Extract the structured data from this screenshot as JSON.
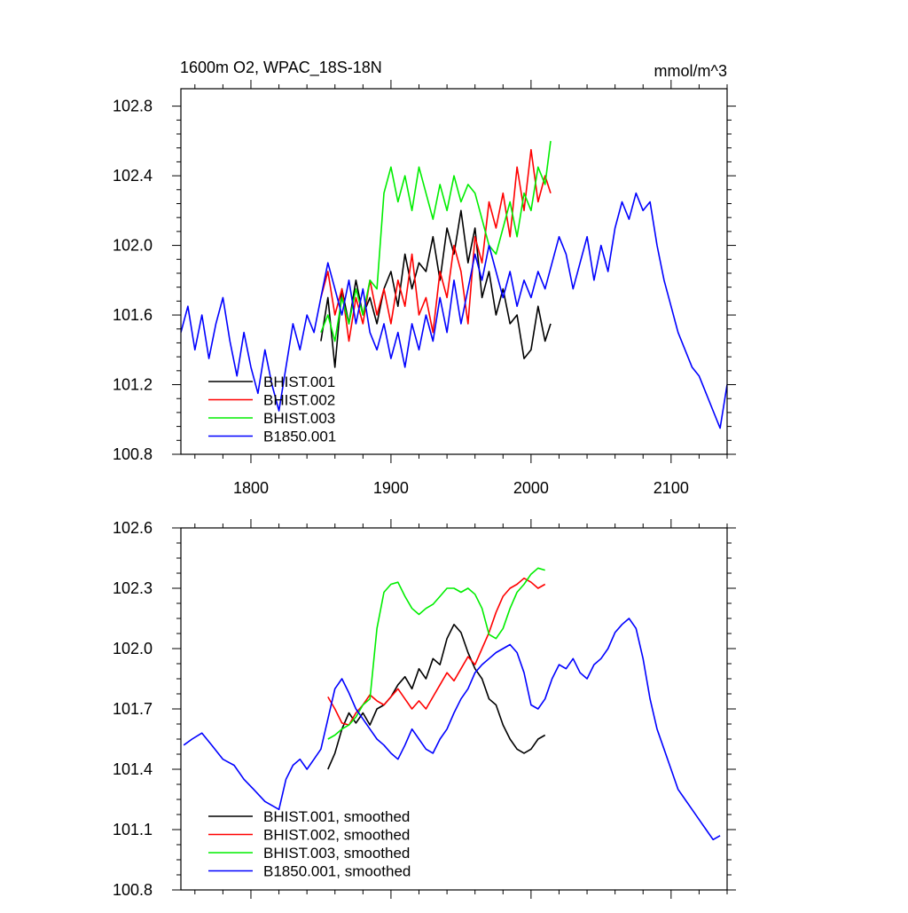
{
  "chart_data": [
    {
      "type": "line",
      "title": "1600m O2, WPAC_18S-18N",
      "units": "mmol/m^3",
      "xlim": [
        1750,
        2140
      ],
      "ylim": [
        100.8,
        102.9
      ],
      "xticks": [
        1800,
        1900,
        2000,
        2100
      ],
      "xtick_labels": [
        "1800",
        "1900",
        "2000",
        "2100"
      ],
      "yticks": [
        100.8,
        101.2,
        101.6,
        102.0,
        102.4,
        102.8
      ],
      "ytick_labels": [
        "100.8",
        "101.2",
        "101.6",
        "102.0",
        "102.4",
        "102.8"
      ],
      "legend_position": "bottom-left",
      "series": [
        {
          "name": "BHIST.001",
          "color": "#000000",
          "x": [
            1850,
            1855,
            1860,
            1865,
            1870,
            1875,
            1880,
            1885,
            1890,
            1895,
            1900,
            1905,
            1910,
            1915,
            1920,
            1925,
            1930,
            1935,
            1940,
            1945,
            1950,
            1955,
            1960,
            1965,
            1970,
            1975,
            1980,
            1985,
            1990,
            1995,
            2000,
            2005,
            2010,
            2014
          ],
          "values": [
            101.45,
            101.7,
            101.3,
            101.75,
            101.55,
            101.8,
            101.6,
            101.7,
            101.55,
            101.75,
            101.85,
            101.65,
            101.95,
            101.75,
            101.9,
            101.85,
            102.05,
            101.8,
            102.1,
            101.95,
            102.2,
            101.9,
            102.1,
            101.7,
            101.85,
            101.6,
            101.75,
            101.55,
            101.6,
            101.35,
            101.4,
            101.65,
            101.45,
            101.55
          ]
        },
        {
          "name": "BHIST.002",
          "color": "#ff0000",
          "x": [
            1850,
            1855,
            1860,
            1865,
            1870,
            1875,
            1880,
            1885,
            1890,
            1895,
            1900,
            1905,
            1910,
            1915,
            1920,
            1925,
            1930,
            1935,
            1940,
            1945,
            1950,
            1955,
            1960,
            1965,
            1970,
            1975,
            1980,
            1985,
            1990,
            1995,
            2000,
            2005,
            2010,
            2014
          ],
          "values": [
            101.7,
            101.85,
            101.6,
            101.75,
            101.45,
            101.7,
            101.55,
            101.8,
            101.6,
            101.75,
            101.55,
            101.8,
            101.65,
            101.95,
            101.6,
            101.7,
            101.5,
            101.85,
            101.7,
            102.0,
            101.85,
            101.55,
            102.05,
            101.9,
            102.25,
            102.1,
            102.3,
            102.05,
            102.45,
            102.2,
            102.55,
            102.25,
            102.4,
            102.3
          ]
        },
        {
          "name": "BHIST.003",
          "color": "#00ee00",
          "x": [
            1850,
            1855,
            1860,
            1865,
            1870,
            1875,
            1880,
            1885,
            1890,
            1895,
            1900,
            1905,
            1910,
            1915,
            1920,
            1925,
            1930,
            1935,
            1940,
            1945,
            1950,
            1955,
            1960,
            1965,
            1970,
            1975,
            1980,
            1985,
            1990,
            1995,
            2000,
            2005,
            2010,
            2014
          ],
          "values": [
            101.5,
            101.6,
            101.45,
            101.7,
            101.55,
            101.75,
            101.6,
            101.8,
            101.75,
            102.3,
            102.45,
            102.25,
            102.4,
            102.2,
            102.45,
            102.3,
            102.15,
            102.35,
            102.2,
            102.4,
            102.25,
            102.35,
            102.3,
            102.15,
            102.0,
            101.95,
            102.1,
            102.25,
            102.05,
            102.3,
            102.2,
            102.45,
            102.35,
            102.6
          ]
        },
        {
          "name": "B1850.001",
          "color": "#0000ff",
          "x": [
            1750,
            1755,
            1760,
            1765,
            1770,
            1775,
            1780,
            1785,
            1790,
            1795,
            1800,
            1805,
            1810,
            1815,
            1820,
            1825,
            1830,
            1835,
            1840,
            1845,
            1850,
            1855,
            1860,
            1865,
            1870,
            1875,
            1880,
            1885,
            1890,
            1895,
            1900,
            1905,
            1910,
            1915,
            1920,
            1925,
            1930,
            1935,
            1940,
            1945,
            1950,
            1955,
            1960,
            1965,
            1970,
            1975,
            1980,
            1985,
            1990,
            1995,
            2000,
            2005,
            2010,
            2015,
            2020,
            2025,
            2030,
            2035,
            2040,
            2045,
            2050,
            2055,
            2060,
            2065,
            2070,
            2075,
            2080,
            2085,
            2090,
            2095,
            2100,
            2105,
            2110,
            2115,
            2120,
            2125,
            2130,
            2135,
            2140
          ],
          "values": [
            101.5,
            101.65,
            101.4,
            101.6,
            101.35,
            101.55,
            101.7,
            101.45,
            101.25,
            101.5,
            101.3,
            101.15,
            101.4,
            101.2,
            101.05,
            101.3,
            101.55,
            101.4,
            101.6,
            101.5,
            101.7,
            101.9,
            101.75,
            101.6,
            101.8,
            101.55,
            101.75,
            101.5,
            101.4,
            101.55,
            101.35,
            101.5,
            101.3,
            101.55,
            101.4,
            101.6,
            101.45,
            101.7,
            101.5,
            101.8,
            101.55,
            101.75,
            101.95,
            101.8,
            102.0,
            101.85,
            101.7,
            101.85,
            101.65,
            101.8,
            101.7,
            101.85,
            101.75,
            101.9,
            102.05,
            101.95,
            101.75,
            101.9,
            102.05,
            101.8,
            102.0,
            101.85,
            102.1,
            102.25,
            102.15,
            102.3,
            102.2,
            102.25,
            102.0,
            101.8,
            101.65,
            101.5,
            101.4,
            101.3,
            101.25,
            101.15,
            101.05,
            100.95,
            101.2
          ]
        }
      ]
    },
    {
      "type": "line",
      "title": "",
      "xlim": [
        1750,
        2140
      ],
      "ylim": [
        100.8,
        102.6
      ],
      "xticks": [
        1800,
        1900,
        2000,
        2100
      ],
      "yticks": [
        100.8,
        101.1,
        101.4,
        101.7,
        102.0,
        102.3,
        102.6
      ],
      "ytick_labels": [
        "100.8",
        "101.1",
        "101.4",
        "101.7",
        "102.0",
        "102.3",
        "102.6"
      ],
      "legend_position": "bottom-left",
      "series": [
        {
          "name": "BHIST.001, smoothed",
          "color": "#000000",
          "x": [
            1855,
            1860,
            1865,
            1870,
            1875,
            1880,
            1885,
            1890,
            1895,
            1900,
            1905,
            1910,
            1915,
            1920,
            1925,
            1930,
            1935,
            1940,
            1945,
            1950,
            1955,
            1960,
            1965,
            1970,
            1975,
            1980,
            1985,
            1990,
            1995,
            2000,
            2005,
            2010
          ],
          "values": [
            101.4,
            101.48,
            101.6,
            101.68,
            101.63,
            101.68,
            101.62,
            101.7,
            101.72,
            101.76,
            101.82,
            101.86,
            101.8,
            101.9,
            101.85,
            101.95,
            101.92,
            102.05,
            102.12,
            102.08,
            101.98,
            101.9,
            101.85,
            101.75,
            101.72,
            101.62,
            101.55,
            101.5,
            101.48,
            101.5,
            101.55,
            101.57
          ]
        },
        {
          "name": "BHIST.002, smoothed",
          "color": "#ff0000",
          "x": [
            1855,
            1860,
            1865,
            1870,
            1875,
            1880,
            1885,
            1890,
            1895,
            1900,
            1905,
            1910,
            1915,
            1920,
            1925,
            1930,
            1935,
            1940,
            1945,
            1950,
            1955,
            1960,
            1965,
            1970,
            1975,
            1980,
            1985,
            1990,
            1995,
            2000,
            2005,
            2010
          ],
          "values": [
            101.76,
            101.7,
            101.63,
            101.62,
            101.68,
            101.72,
            101.77,
            101.74,
            101.72,
            101.76,
            101.8,
            101.75,
            101.7,
            101.74,
            101.7,
            101.76,
            101.82,
            101.88,
            101.84,
            101.9,
            101.96,
            101.92,
            102.0,
            102.08,
            102.18,
            102.26,
            102.3,
            102.32,
            102.35,
            102.33,
            102.3,
            102.32
          ]
        },
        {
          "name": "BHIST.003, smoothed",
          "color": "#00ee00",
          "x": [
            1855,
            1860,
            1865,
            1870,
            1875,
            1880,
            1885,
            1890,
            1895,
            1900,
            1905,
            1910,
            1915,
            1920,
            1925,
            1930,
            1935,
            1940,
            1945,
            1950,
            1955,
            1960,
            1965,
            1970,
            1975,
            1980,
            1985,
            1990,
            1995,
            2000,
            2005,
            2010
          ],
          "values": [
            101.55,
            101.57,
            101.6,
            101.62,
            101.66,
            101.72,
            101.75,
            102.1,
            102.28,
            102.32,
            102.33,
            102.26,
            102.2,
            102.17,
            102.2,
            102.22,
            102.26,
            102.3,
            102.3,
            102.28,
            102.3,
            102.27,
            102.2,
            102.07,
            102.05,
            102.1,
            102.2,
            102.28,
            102.32,
            102.37,
            102.4,
            102.39
          ]
        },
        {
          "name": "B1850.001, smoothed",
          "color": "#0000ff",
          "x": [
            1752,
            1758,
            1765,
            1772,
            1780,
            1788,
            1795,
            1802,
            1810,
            1815,
            1820,
            1825,
            1830,
            1835,
            1840,
            1845,
            1850,
            1855,
            1860,
            1865,
            1870,
            1875,
            1880,
            1885,
            1890,
            1895,
            1900,
            1905,
            1910,
            1915,
            1920,
            1925,
            1930,
            1935,
            1940,
            1945,
            1950,
            1955,
            1960,
            1965,
            1970,
            1975,
            1980,
            1985,
            1990,
            1995,
            2000,
            2005,
            2010,
            2015,
            2020,
            2025,
            2030,
            2035,
            2040,
            2045,
            2050,
            2055,
            2060,
            2065,
            2070,
            2075,
            2080,
            2085,
            2090,
            2095,
            2100,
            2105,
            2110,
            2115,
            2120,
            2125,
            2130,
            2135
          ],
          "values": [
            101.52,
            101.55,
            101.58,
            101.52,
            101.45,
            101.42,
            101.35,
            101.3,
            101.24,
            101.22,
            101.2,
            101.35,
            101.42,
            101.45,
            101.4,
            101.45,
            101.5,
            101.65,
            101.8,
            101.85,
            101.78,
            101.7,
            101.65,
            101.6,
            101.55,
            101.52,
            101.48,
            101.45,
            101.52,
            101.6,
            101.55,
            101.5,
            101.48,
            101.55,
            101.6,
            101.68,
            101.75,
            101.8,
            101.88,
            101.92,
            101.95,
            101.98,
            102.0,
            102.02,
            101.98,
            101.88,
            101.72,
            101.7,
            101.75,
            101.85,
            101.92,
            101.9,
            101.95,
            101.88,
            101.85,
            101.92,
            101.95,
            102.0,
            102.08,
            102.12,
            102.15,
            102.1,
            101.95,
            101.75,
            101.6,
            101.5,
            101.4,
            101.3,
            101.25,
            101.2,
            101.15,
            101.1,
            101.05,
            101.07
          ]
        }
      ]
    }
  ]
}
